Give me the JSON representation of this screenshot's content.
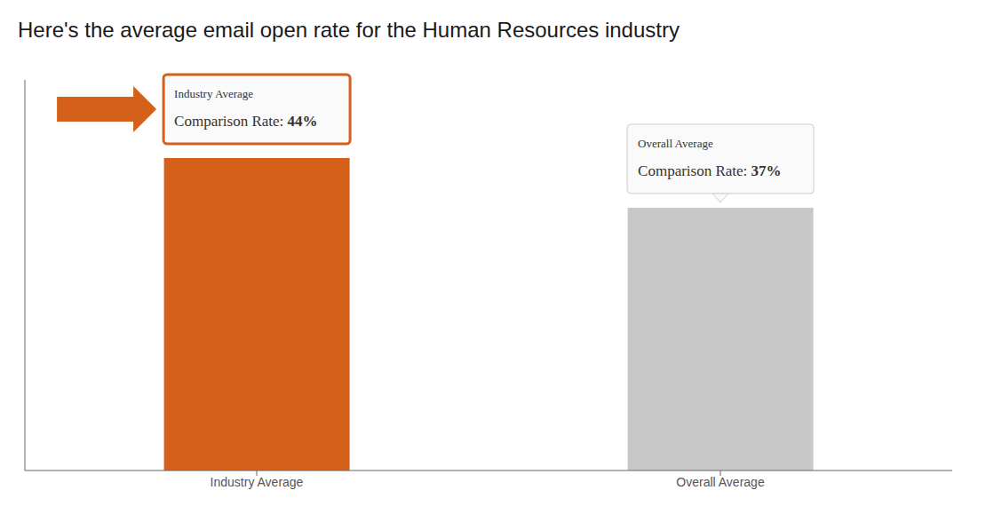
{
  "chart_data": {
    "type": "bar",
    "title": "Here's the average email open rate for the Human Resources industry",
    "categories": [
      "Industry Average",
      "Overall Average"
    ],
    "values": [
      44,
      37
    ],
    "colors": [
      "#d4601a",
      "#c8c8c8"
    ],
    "ylim": [
      0,
      55
    ],
    "tick_labels": "x",
    "annotations": [
      [
        "Industry Average",
        "Comparison Rate: 44%"
      ],
      [
        "Overall Average",
        "Comparison Rate: 37%"
      ]
    ]
  }
}
